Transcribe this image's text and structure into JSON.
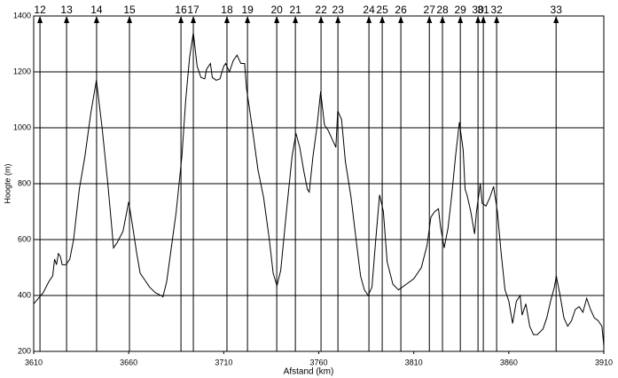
{
  "chart_data": {
    "type": "line",
    "x_label": "Afstand (km)",
    "y_label": "Hoogte (m)",
    "xlim": [
      3610,
      3910
    ],
    "ylim": [
      200,
      1400
    ],
    "xticks": [
      3610,
      3660,
      3710,
      3760,
      3810,
      3860,
      3910
    ],
    "yticks": [
      200,
      400,
      600,
      800,
      1000,
      1200,
      1400
    ],
    "grid": true,
    "x": [
      3610,
      3615,
      3618,
      3620,
      3621,
      3622,
      3623,
      3624,
      3625,
      3627,
      3629,
      3631,
      3634,
      3637,
      3640,
      3643,
      3646,
      3649,
      3651,
      3652,
      3654,
      3657,
      3659,
      3660,
      3662,
      3664,
      3666,
      3668,
      3671,
      3674,
      3677,
      3678,
      3680,
      3683,
      3685,
      3688,
      3690,
      3692,
      3694,
      3695,
      3696,
      3698,
      3700,
      3701,
      3703,
      3704,
      3706,
      3708,
      3710,
      3711,
      3713,
      3715,
      3717,
      3719,
      3721,
      3722,
      3725,
      3728,
      3731,
      3734,
      3736,
      3738,
      3740,
      3743,
      3746,
      3748,
      3750,
      3752,
      3754,
      3755,
      3757,
      3759,
      3761,
      3763,
      3765,
      3767,
      3769,
      3770,
      3772,
      3774,
      3777,
      3780,
      3782,
      3784,
      3786,
      3788,
      3790,
      3792,
      3794,
      3796,
      3799,
      3802,
      3806,
      3810,
      3814,
      3817,
      3819,
      3821,
      3823,
      3824,
      3826,
      3828,
      3830,
      3832,
      3834,
      3836,
      3837,
      3838,
      3840,
      3842,
      3843,
      3845,
      3846,
      3848,
      3850,
      3852,
      3854,
      3856,
      3858,
      3860,
      3862,
      3864,
      3866,
      3867,
      3869,
      3871,
      3873,
      3875,
      3878,
      3880,
      3882,
      3884,
      3885,
      3887,
      3889,
      3891,
      3893,
      3895,
      3897,
      3899,
      3901,
      3903,
      3905,
      3907,
      3909,
      3910
    ],
    "series": [
      {
        "color": "#000000",
        "values": [
          370,
          410,
          450,
          470,
          530,
          510,
          550,
          540,
          510,
          510,
          530,
          600,
          780,
          900,
          1050,
          1170,
          1000,
          800,
          650,
          570,
          590,
          630,
          700,
          735,
          650,
          560,
          480,
          460,
          430,
          410,
          400,
          395,
          450,
          600,
          700,
          900,
          1100,
          1250,
          1340,
          1280,
          1220,
          1180,
          1175,
          1210,
          1230,
          1180,
          1170,
          1175,
          1220,
          1230,
          1200,
          1240,
          1260,
          1230,
          1230,
          1140,
          1000,
          850,
          750,
          600,
          480,
          435,
          490,
          700,
          900,
          980,
          930,
          850,
          780,
          770,
          900,
          1000,
          1130,
          1010,
          990,
          960,
          930,
          1060,
          1030,
          880,
          750,
          580,
          470,
          420,
          400,
          430,
          600,
          760,
          700,
          520,
          440,
          420,
          440,
          460,
          500,
          580,
          680,
          700,
          710,
          650,
          570,
          640,
          760,
          900,
          1020,
          920,
          780,
          760,
          700,
          620,
          700,
          800,
          730,
          720,
          750,
          790,
          700,
          550,
          420,
          380,
          300,
          380,
          400,
          330,
          370,
          290,
          260,
          260,
          280,
          320,
          380,
          430,
          470,
          400,
          320,
          290,
          310,
          350,
          360,
          340,
          390,
          350,
          320,
          310,
          290,
          220
        ]
      }
    ],
    "markers": {
      "labels": [
        "12",
        "13",
        "14",
        "15",
        "16",
        "17",
        "18",
        "19",
        "20",
        "21",
        "22",
        "23",
        "24",
        "25",
        "26",
        "27",
        "28",
        "29",
        "30",
        "31",
        "32",
        "33"
      ],
      "x": [
        3613.3,
        3627.3,
        3643.1,
        3660.4,
        3687.5,
        3694.0,
        3711.7,
        3722.5,
        3737.9,
        3747.7,
        3761.2,
        3770.1,
        3786.4,
        3793.4,
        3803.2,
        3818.2,
        3825.1,
        3834.5,
        3843.8,
        3846.6,
        3853.6,
        3884.9
      ]
    }
  }
}
